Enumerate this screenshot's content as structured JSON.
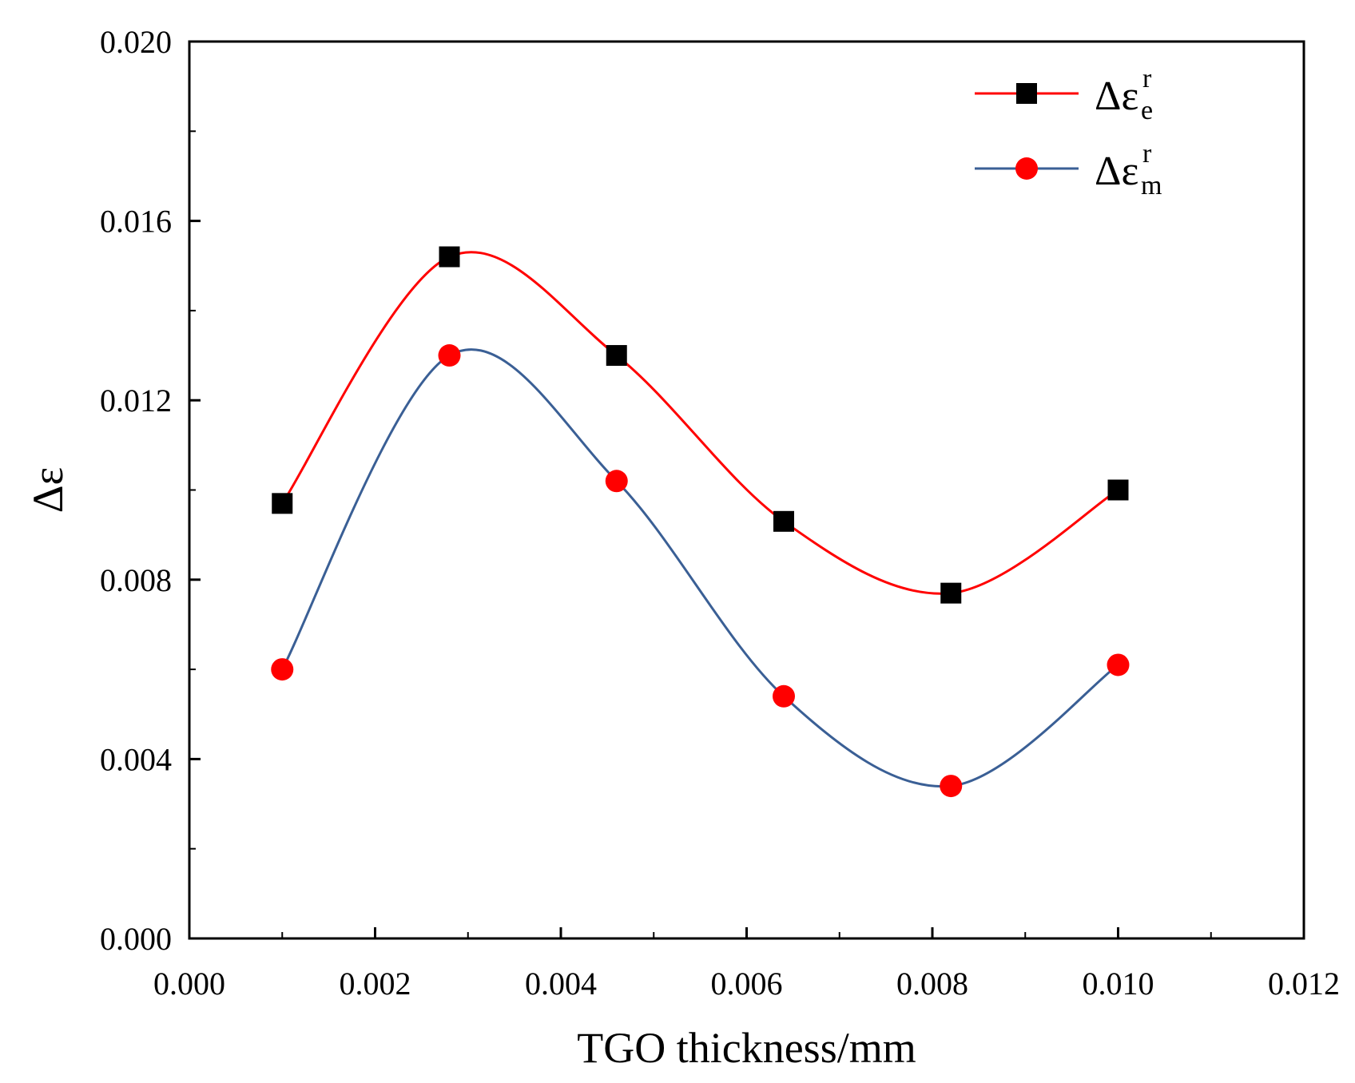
{
  "chart_data": {
    "type": "line",
    "title": "",
    "xlabel": "TGO thickness/mm",
    "ylabel": "Δε",
    "xlim": [
      0.0,
      0.012
    ],
    "ylim": [
      0.0,
      0.02
    ],
    "x_ticks": [
      0.0,
      0.002,
      0.004,
      0.006,
      0.008,
      0.01,
      0.012
    ],
    "x_tick_labels": [
      "0.000",
      "0.002",
      "0.004",
      "0.006",
      "0.008",
      "0.010",
      "0.012"
    ],
    "y_ticks": [
      0.0,
      0.004,
      0.008,
      0.012,
      0.016,
      0.02
    ],
    "y_tick_labels": [
      "0.000",
      "0.004",
      "0.008",
      "0.012",
      "0.016",
      "0.020"
    ],
    "grid": false,
    "legend_position": "top-right",
    "x": [
      0.001,
      0.0028,
      0.0046,
      0.0064,
      0.0082,
      0.01
    ],
    "series": [
      {
        "name": "Δεe r",
        "legend_base": "Δε",
        "legend_sup": "r",
        "legend_sub": "e",
        "values": [
          0.0097,
          0.0152,
          0.013,
          0.0093,
          0.0077,
          0.01
        ],
        "line_color": "#ff0000",
        "marker": "square",
        "marker_color": "#000000"
      },
      {
        "name": "Δεm r",
        "legend_base": "Δε",
        "legend_sup": "r",
        "legend_sub": "m",
        "values": [
          0.006,
          0.013,
          0.0102,
          0.0054,
          0.0034,
          0.0061
        ],
        "line_color": "#3a5f95",
        "marker": "circle",
        "marker_color": "#ff0000"
      }
    ]
  }
}
